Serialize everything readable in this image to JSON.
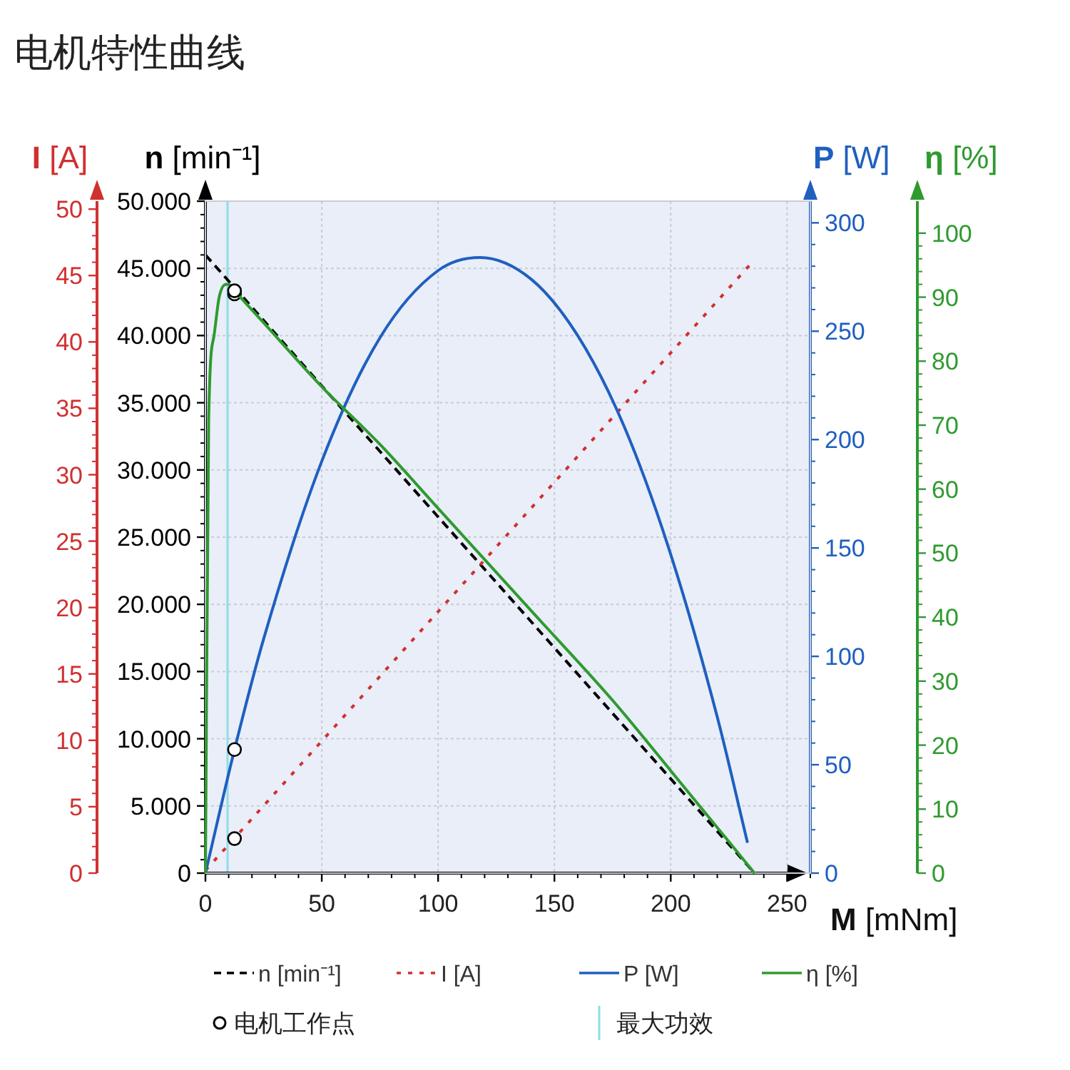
{
  "chart_data": [
    {
      "type": "line",
      "title": "电机特性曲线",
      "xlabel": "M [mNm]",
      "ylabel": "n [min⁻¹]",
      "y2label": "I [A]",
      "y3label": "P [W]",
      "xlim": [
        0,
        260
      ],
      "xticks": [
        0,
        50,
        100,
        150,
        200,
        250
      ],
      "ylim": [
        0,
        50000
      ],
      "yticks": [
        0,
        {
          "value": 5000,
          "label": "5.000"
        },
        {
          "value": 10000,
          "label": "10.000"
        },
        {
          "value": 15000,
          "label": "15.000"
        },
        {
          "value": 20000,
          "label": "20.000"
        },
        {
          "value": 25000,
          "label": "25.000"
        },
        {
          "value": 30000,
          "label": "30.000"
        },
        {
          "value": 35000,
          "label": "35.000"
        },
        {
          "value": 40000,
          "label": "40.000"
        },
        {
          "value": 45000,
          "label": "45.000"
        },
        {
          "value": 50000,
          "label": "50.000"
        }
      ],
      "y2lim": [
        0,
        50.6
      ],
      "y2ticks": [
        0,
        5,
        10,
        15,
        20,
        25,
        30,
        35,
        40,
        45,
        50
      ],
      "y3lim": [
        0,
        310
      ],
      "y3ticks": [
        0,
        50,
        100,
        150,
        200,
        250,
        300
      ],
      "grid": true,
      "legend": "bottom",
      "marker": "none",
      "ref_lines": [
        {
          "axis": "x",
          "value": 9.5,
          "label": "最大功效",
          "color": "#8fdde6"
        }
      ],
      "series": [
        {
          "name": "n [min⁻¹]",
          "line_style": "dashed",
          "color": "#000000",
          "x": [
            0,
            236
          ],
          "values": [
            46000,
            0
          ]
        },
        {
          "name": "I [A]",
          "line_style": "dotted",
          "color": "#d03030",
          "axis": "y2",
          "x": [
            0,
            235
          ],
          "values": [
            0.2,
            46
          ]
        },
        {
          "name": "P [W]",
          "line_style": "solid",
          "color": "#1f5fc0",
          "axis": "y3",
          "x": [
            0,
            12.5,
            25,
            50,
            75,
            100,
            118,
            140,
            160,
            180,
            200,
            220,
            233
          ],
          "values": [
            0,
            57,
            108,
            190,
            247,
            278,
            284,
            274,
            248,
            206,
            147,
            72,
            14
          ]
        },
        {
          "name": "电机工作点",
          "type": "scatter",
          "marker": "circle",
          "color": "#000000",
          "x": [
            12.5
          ],
          "values": [
            43100
          ]
        },
        {
          "type": "scatter",
          "marker": "circle",
          "color": "#000000",
          "axis": "y2",
          "x": [
            12.5
          ],
          "values": [
            2.6
          ]
        },
        {
          "type": "scatter",
          "marker": "circle",
          "color": "#000000",
          "axis": "y3",
          "x": [
            12.5
          ],
          "values": [
            57
          ]
        }
      ]
    },
    {
      "type": "line",
      "ylabel": "η [%]",
      "xlim": [
        0,
        260
      ],
      "ylim": [
        0,
        105
      ],
      "yticks": [
        0,
        10,
        20,
        30,
        40,
        50,
        60,
        70,
        80,
        90,
        100
      ],
      "tick_labels": "y",
      "legend": "bottom",
      "marker": "none",
      "series": [
        {
          "name": "η [%]",
          "line_style": "solid",
          "color": "#2f9a2f",
          "x": [
            0,
            1.4,
            3.7,
            5.9,
            8.8,
            10,
            12.5,
            25,
            50,
            75,
            100,
            120,
            140,
            175,
            200,
            236
          ],
          "values": [
            0,
            71,
            84,
            90,
            92,
            92,
            91,
            86,
            76,
            67,
            57,
            49,
            41,
            27,
            16,
            0
          ]
        },
        {
          "type": "scatter",
          "marker": "circle",
          "color": "#000000",
          "x": [
            12.5
          ],
          "values": [
            91
          ]
        }
      ]
    }
  ]
}
